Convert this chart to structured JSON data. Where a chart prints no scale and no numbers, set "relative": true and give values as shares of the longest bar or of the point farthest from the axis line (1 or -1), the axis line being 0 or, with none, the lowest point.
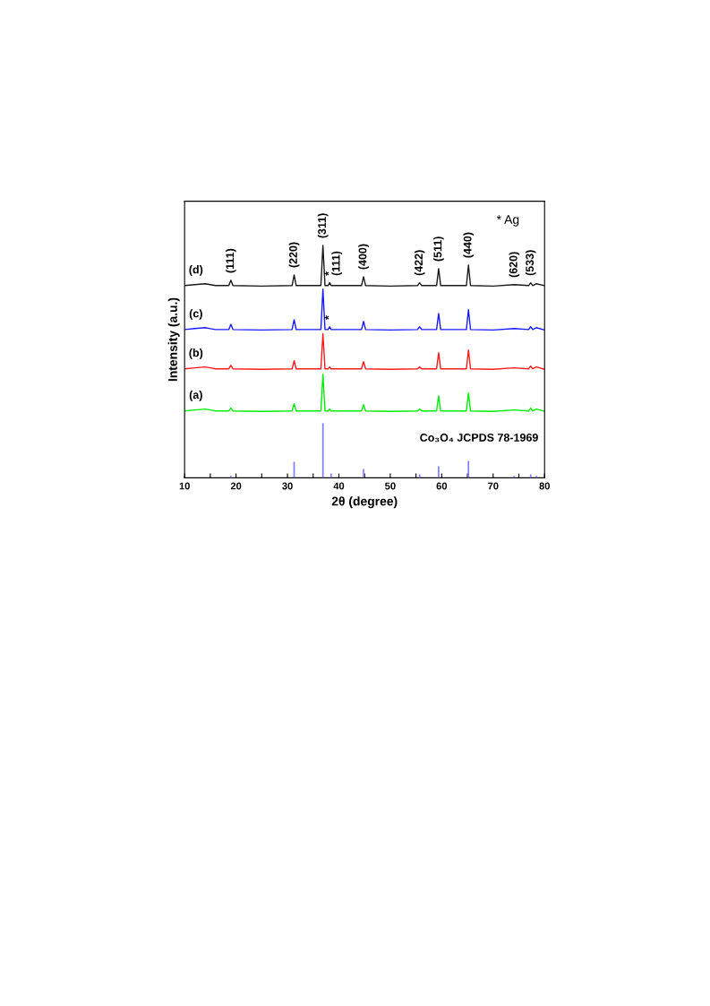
{
  "chart_data": {
    "type": "line",
    "relative": true,
    "xlabel": "2θ (degree)",
    "ylabel": "Intensity (a.u.)",
    "xlim": [
      10,
      80
    ],
    "xticks": [
      10,
      {
        "value": 15,
        "label": null
      },
      20,
      {
        "value": 25,
        "label": null
      },
      30,
      {
        "value": 35,
        "label": null
      },
      40,
      {
        "value": 45,
        "label": null
      },
      50,
      {
        "value": 55,
        "label": null
      },
      60,
      {
        "value": 65,
        "label": null
      },
      70,
      {
        "value": 75,
        "label": null
      },
      80
    ],
    "x": [
      10,
      12,
      14,
      15,
      16,
      18.6,
      19.0,
      19.4,
      25,
      30.9,
      31.3,
      31.7,
      36.5,
      36.9,
      37.3,
      37.9,
      38.2,
      38.5,
      44.4,
      44.8,
      45.2,
      50,
      55.3,
      55.7,
      56.1,
      59.0,
      59.4,
      59.8,
      64.8,
      65.2,
      65.6,
      70,
      74.1,
      76.9,
      77.3,
      77.7,
      78.4,
      80
    ],
    "series": [
      {
        "name": "(a)",
        "color": "#00ee00",
        "values": [
          0.288,
          0.292,
          0.296,
          0.292,
          0.288,
          0.288,
          0.3,
          0.288,
          0.286,
          0.288,
          0.319,
          0.288,
          0.288,
          0.446,
          0.288,
          0.288,
          0.296,
          0.288,
          0.288,
          0.315,
          0.288,
          0.286,
          0.288,
          0.296,
          0.288,
          0.288,
          0.353,
          0.288,
          0.288,
          0.365,
          0.288,
          0.286,
          0.292,
          0.288,
          0.3,
          0.288,
          0.296,
          0.286
        ]
      },
      {
        "name": "(b)",
        "color": "#ff1a1a",
        "values": [
          0.469,
          0.473,
          0.477,
          0.473,
          0.469,
          0.469,
          0.484,
          0.469,
          0.467,
          0.469,
          0.504,
          0.469,
          0.469,
          0.62,
          0.469,
          0.469,
          0.477,
          0.469,
          0.469,
          0.5,
          0.469,
          0.467,
          0.469,
          0.477,
          0.469,
          0.469,
          0.538,
          0.469,
          0.469,
          0.55,
          0.469,
          0.467,
          0.473,
          0.469,
          0.481,
          0.469,
          0.477,
          0.467
        ]
      },
      {
        "name": "(c)",
        "color": "#1a1aff",
        "values": [
          0.638,
          0.642,
          0.646,
          0.642,
          0.638,
          0.638,
          0.661,
          0.638,
          0.636,
          0.638,
          0.68,
          0.638,
          0.638,
          0.812,
          0.638,
          0.638,
          0.65,
          0.638,
          0.638,
          0.673,
          0.638,
          0.636,
          0.638,
          0.65,
          0.638,
          0.638,
          0.707,
          0.638,
          0.638,
          0.723,
          0.638,
          0.636,
          0.642,
          0.638,
          0.65,
          0.638,
          0.646,
          0.636
        ]
      },
      {
        "name": "(d)",
        "color": "#1a1a1a",
        "values": [
          0.827,
          0.831,
          0.835,
          0.831,
          0.827,
          0.827,
          0.85,
          0.827,
          0.825,
          0.827,
          0.873,
          0.827,
          0.827,
          1.0,
          0.827,
          0.827,
          0.839,
          0.827,
          0.827,
          0.865,
          0.827,
          0.825,
          0.827,
          0.839,
          0.827,
          0.827,
          0.9,
          0.827,
          0.827,
          0.915,
          0.827,
          0.825,
          0.831,
          0.827,
          0.839,
          0.827,
          0.835,
          0.827
        ]
      },
      {
        "name": "Co₃O₄ JCPDS 78-1969",
        "type": "bar",
        "color": "#8080ff",
        "x": [
          19.0,
          31.3,
          36.9,
          38.5,
          44.8,
          55.7,
          59.4,
          65.2,
          74.1,
          77.3,
          78.4
        ],
        "values": [
          0.008,
          0.069,
          0.235,
          0.019,
          0.038,
          0.015,
          0.05,
          0.073,
          0.008,
          0.015,
          0.008
        ]
      }
    ],
    "annotations": [
      {
        "text": "(111)",
        "x": 19.0,
        "y": 0.85
      },
      {
        "text": "(220)",
        "x": 31.3,
        "y": 0.873
      },
      {
        "text": "(311)",
        "x": 36.9,
        "y": 1.0
      },
      {
        "text": "*",
        "x": 38.2,
        "y": 0.839
      },
      {
        "text": "(111)",
        "x": 38.2,
        "y": 0.839
      },
      {
        "text": "(400)",
        "x": 44.8,
        "y": 0.865
      },
      {
        "text": "(422)",
        "x": 55.7,
        "y": 0.839
      },
      {
        "text": "(511)",
        "x": 59.4,
        "y": 0.9
      },
      {
        "text": "(440)",
        "x": 65.2,
        "y": 0.915
      },
      {
        "text": "(620)",
        "x": 74.1,
        "y": 0.831
      },
      {
        "text": "(533)",
        "x": 77.3,
        "y": 0.839
      },
      {
        "text": "*",
        "x": 38.2,
        "y": 0.65
      },
      "* Ag"
    ]
  }
}
